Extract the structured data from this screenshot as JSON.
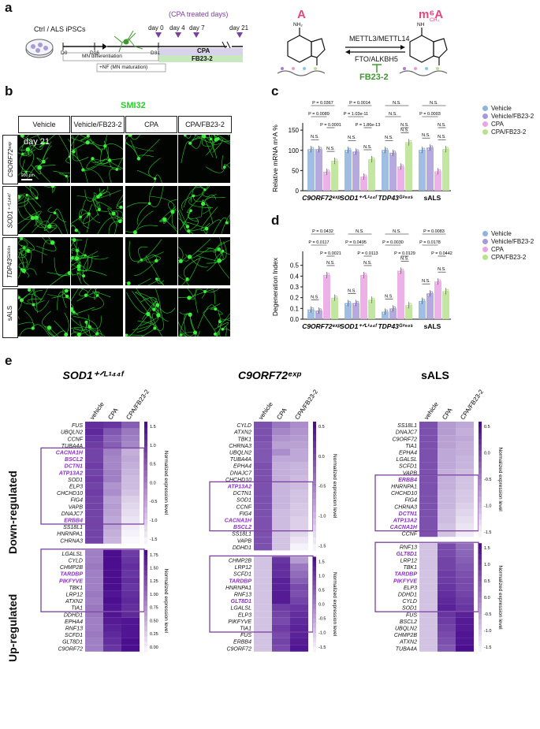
{
  "panels": [
    "a",
    "b",
    "c",
    "d",
    "e"
  ],
  "panel_a": {
    "cells_label": "Ctrl / ALS iPSCs",
    "d0": "D0",
    "d16": "D16",
    "d31": "D31",
    "mn_diff": "MN differentiation",
    "nf": "+NF (MN maturation)",
    "cpa_days": "(CPA treated days)",
    "days": [
      "day 0",
      "day 4",
      "day 7",
      "day 21"
    ],
    "cpa": "CPA",
    "fb": "FB23-2",
    "A": "A",
    "m6A": "m⁶A",
    "nh2": "NH₂",
    "nh": "NH",
    "ch3": "CH₃",
    "writer": "METTL3/METTL14",
    "eraser": "FTO/ALKBH5",
    "inhib": "FB23-2"
  },
  "panel_b": {
    "stain": "SMI32",
    "columns": [
      "Vehicle",
      "Vehicle/FB23-2",
      "CPA",
      "CPA/FB23-2"
    ],
    "rows": [
      "C9ORF72ᵉˣᵖ",
      "SOD1⁺ᐟᴸ¹⁴⁴ᶠ",
      "TDP43ᴳ²⁹⁸ˢ",
      "sALS"
    ],
    "day": "day 21",
    "scale": "200 μm"
  },
  "legend": [
    "Vehicle",
    "Vehicle/FB23-2",
    "CPA",
    "CPA/FB23-2"
  ],
  "colors": {
    "vehicle": "#8fb3df",
    "vehfb": "#a89ad8",
    "cpa": "#e9a5e3",
    "cpafb": "#b8e28f",
    "heat_dark": "#4a0e8f",
    "highlight": "#8b2fc9",
    "smi": "#23d323"
  },
  "chart_data": [
    {
      "type": "bar",
      "ylabel": "Relative mRNA m⁶A %",
      "ylim": [
        0,
        160
      ],
      "yticks": [
        "0",
        "50",
        "100",
        "150"
      ],
      "categories": [
        "C9ORF72ᵉˣᵖ",
        "SOD1⁺ᐟᴸ¹⁴⁴ᶠ",
        "TDP43ᴳ²⁹⁸ˢ",
        "sALS"
      ],
      "series": [
        {
          "name": "Vehicle",
          "values": [
            103,
            101,
            101,
            101
          ]
        },
        {
          "name": "Vehicle/FB23-2",
          "values": [
            103,
            97,
            94,
            107
          ]
        },
        {
          "name": "CPA",
          "values": [
            47,
            35,
            60,
            48
          ]
        },
        {
          "name": "CPA/FB23-2",
          "values": [
            74,
            78,
            120,
            103
          ]
        }
      ],
      "pvalues": [
        [
          "P = 0.0367",
          "P = 0.0089",
          "P = 0.0001",
          "N.S.",
          "N.S."
        ],
        [
          "P = 0.0014",
          "P = 1.03e-11",
          "P = 1.86e-13",
          "N.S.",
          "N.S."
        ],
        [
          "N.S.",
          "N.S.",
          "N.S.",
          "N.S.",
          "N.S."
        ],
        [
          "N.S.",
          "P = 0.0003",
          "N.S.",
          "N.S.",
          "N.S."
        ]
      ]
    },
    {
      "type": "bar",
      "ylabel": "Degeneration Index",
      "ylim": [
        0,
        0.6
      ],
      "yticks": [
        "0.0",
        "0.1",
        "0.2",
        "0.3",
        "0.4",
        "0.5"
      ],
      "categories": [
        "C9ORF72ᵉˣᵖ",
        "SOD1⁺ᐟᴸ¹⁴⁴ᶠ",
        "TDP43ᴳ²⁹⁸ˢ",
        "sALS"
      ],
      "series": [
        {
          "name": "Vehicle",
          "values": [
            0.09,
            0.15,
            0.07,
            0.17
          ]
        },
        {
          "name": "Vehicle/FB23-2",
          "values": [
            0.08,
            0.15,
            0.1,
            0.24
          ]
        },
        {
          "name": "CPA",
          "values": [
            0.41,
            0.41,
            0.45,
            0.35
          ]
        },
        {
          "name": "CPA/FB23-2",
          "values": [
            0.2,
            0.18,
            0.13,
            0.26
          ]
        }
      ],
      "pvalues": [
        [
          "P = 0.0432",
          "P = 0.0117",
          "P = 0.0021",
          "N.S.",
          "N.S."
        ],
        [
          "N.S.",
          "P = 0.0495",
          "P = 0.0113",
          "N.S.",
          "N.S."
        ],
        [
          "N.S.",
          "P = 0.0030",
          "P = 0.0129",
          "N.S.",
          "N.S."
        ],
        [
          "P = 0.0083",
          "P = 0.0178",
          "P = 0.0442",
          "N.S.",
          "N.S."
        ]
      ]
    },
    {
      "type": "heatmap",
      "title": "SOD1⁺ᐟᴸ¹⁴⁴ᶠ",
      "columns": [
        "vehicle",
        "CPA",
        "CPA/FB23-2"
      ],
      "colorbar_title": "Normalized expression level",
      "down_ticks": [
        "1.5",
        "1.0",
        "0.5",
        "0.0",
        "-0.5",
        "-1.0",
        "-1.5"
      ],
      "up_ticks": [
        "1.75",
        "1.50",
        "1.25",
        "1.00",
        "0.75",
        "0.50",
        "0.25",
        "0.00"
      ],
      "down_genes": [
        "FUS",
        "UBQLN2",
        "CCNF",
        "TUBA4A",
        "CACNA1H",
        "BSCL2",
        "DCTN1",
        "ATP13A2",
        "SOD1",
        "ELP3",
        "CHCHD10",
        "FIG4",
        "VAPB",
        "DNAJC7",
        "ERBB4",
        "SS18L1",
        "HNRNPA1",
        "CHRNA3"
      ],
      "down_highlight": [
        "CACNA1H",
        "BSCL2",
        "DCTN1",
        "ATP13A2",
        "ERBB4"
      ],
      "down_values": [
        [
          1.3,
          1.2,
          0.6
        ],
        [
          1.4,
          0.7,
          0.2
        ],
        [
          1.2,
          0.5,
          0.1
        ],
        [
          1.1,
          0.6,
          0.0
        ],
        [
          1.0,
          0.1,
          -0.6
        ],
        [
          1.0,
          0.0,
          -0.5
        ],
        [
          1.1,
          0.0,
          -0.6
        ],
        [
          1.0,
          0.1,
          -0.7
        ],
        [
          1.1,
          0.1,
          -0.8
        ],
        [
          1.0,
          -0.2,
          -0.8
        ],
        [
          1.1,
          -0.1,
          -0.9
        ],
        [
          1.0,
          -0.4,
          -1.1
        ],
        [
          1.0,
          -0.3,
          -1.2
        ],
        [
          1.0,
          -0.4,
          -1.3
        ],
        [
          1.0,
          -0.5,
          -1.4
        ],
        [
          1.0,
          -0.5,
          -1.5
        ],
        [
          1.0,
          -0.6,
          -1.6
        ],
        [
          1.0,
          -0.7,
          -1.7
        ]
      ],
      "up_genes": [
        "LGALSL",
        "CYLD",
        "CHMP2B",
        "TARDBP",
        "PIKFYVE",
        "TBK1",
        "LRP12",
        "ATXN2",
        "TIA1",
        "DDHD1",
        "EPHA4",
        "RNF13",
        "SCFD1",
        "GLT8D1",
        "C9ORF72"
      ],
      "up_highlight": [
        "TARDBP",
        "PIKFYVE"
      ],
      "up_values": [
        [
          0.1,
          1.8,
          1.1
        ],
        [
          0.1,
          1.8,
          1.2
        ],
        [
          0.2,
          1.8,
          1.3
        ],
        [
          0.1,
          1.8,
          1.2
        ],
        [
          0.1,
          1.8,
          1.3
        ],
        [
          0.1,
          1.8,
          1.2
        ],
        [
          0.2,
          1.7,
          1.3
        ],
        [
          0.1,
          1.8,
          1.4
        ],
        [
          0.2,
          1.7,
          1.3
        ],
        [
          0.2,
          1.7,
          1.4
        ],
        [
          0.1,
          1.6,
          1.7
        ],
        [
          0.1,
          1.5,
          1.7
        ],
        [
          0.2,
          1.4,
          1.7
        ],
        [
          0.1,
          1.3,
          1.8
        ],
        [
          0.1,
          1.2,
          1.8
        ]
      ]
    },
    {
      "type": "heatmap",
      "title": "C9ORF72ᵉˣᵖ",
      "columns": [
        "vehicle",
        "CPA",
        "CPA/FB23-2"
      ],
      "colorbar_title": "Normalized expression level",
      "down_ticks": [
        "0.5",
        "0.0",
        "-0.5",
        "-1.0",
        "-1.5"
      ],
      "up_ticks": [
        "1.5",
        "1.0",
        "0.5",
        "0.0",
        "-0.5",
        "-1.0",
        "-1.5"
      ],
      "down_genes": [
        "CYLD",
        "ATXN2",
        "TBK1",
        "CHRNA3",
        "UBQLN2",
        "TUBA4A",
        "EPHA4",
        "DNAJC7",
        "CHCHD10",
        "ATP13A2",
        "DCTN1",
        "SOD1",
        "CCNF",
        "FIG4",
        "CACNA1H",
        "BSCL2",
        "SS18L1",
        "VAPB",
        "DDHD1"
      ],
      "down_highlight": [
        "ATP13A2",
        "CACNA1H",
        "BSCL2"
      ],
      "down_values": [
        [
          0.8,
          0.2,
          -0.1
        ],
        [
          0.8,
          0.0,
          -0.2
        ],
        [
          0.8,
          -0.2,
          -0.3
        ],
        [
          0.7,
          -0.4,
          -0.4
        ],
        [
          0.7,
          -0.1,
          -0.5
        ],
        [
          0.7,
          -0.5,
          -0.5
        ],
        [
          0.8,
          -0.6,
          -0.7
        ],
        [
          0.8,
          -0.6,
          -0.7
        ],
        [
          0.8,
          -0.6,
          -0.8
        ],
        [
          0.8,
          -0.7,
          -0.8
        ],
        [
          0.8,
          -0.7,
          -0.9
        ],
        [
          0.8,
          -0.7,
          -0.9
        ],
        [
          0.8,
          -0.7,
          -1.0
        ],
        [
          0.8,
          -0.8,
          -1.0
        ],
        [
          0.8,
          -0.8,
          -1.1
        ],
        [
          0.8,
          -0.8,
          -1.1
        ],
        [
          0.8,
          -0.9,
          -1.2
        ],
        [
          0.8,
          -0.9,
          -1.4
        ],
        [
          0.8,
          -0.9,
          -1.6
        ]
      ],
      "up_genes": [
        "CHMP2B",
        "LRP12",
        "SCFD1",
        "TARDBP",
        "HNRNPA1",
        "RNF13",
        "GLT8D1",
        "LGALSL",
        "ELP3",
        "PIKFYVE",
        "TIA1",
        "FUS",
        "ERBB4",
        "C9ORF72"
      ],
      "up_highlight": [
        "TARDBP",
        "GLT8D1"
      ],
      "up_values": [
        [
          -0.9,
          1.2,
          -0.3
        ],
        [
          -0.9,
          1.3,
          0.2
        ],
        [
          -0.9,
          1.3,
          0.4
        ],
        [
          -0.9,
          1.5,
          0.6
        ],
        [
          -0.9,
          1.5,
          0.9
        ],
        [
          -0.9,
          1.6,
          0.8
        ],
        [
          -0.9,
          1.6,
          1.0
        ],
        [
          -0.9,
          1.1,
          1.2
        ],
        [
          -0.9,
          1.0,
          1.3
        ],
        [
          -0.9,
          0.9,
          1.4
        ],
        [
          -0.9,
          1.1,
          1.5
        ],
        [
          -0.9,
          0.9,
          1.5
        ],
        [
          -0.9,
          1.0,
          1.6
        ],
        [
          -0.9,
          0.9,
          1.7
        ]
      ]
    },
    {
      "type": "heatmap",
      "title": "sALS",
      "columns": [
        "vehicle",
        "CPA",
        "CPA/FB23-2"
      ],
      "colorbar_title": "Normalized expression level",
      "down_ticks": [
        "0.5",
        "0.0",
        "-0.5",
        "-1.0",
        "-1.5"
      ],
      "up_ticks": [
        "1.5",
        "1.0",
        "0.5",
        "0.0",
        "-0.5",
        "-1.0",
        "-1.5"
      ],
      "down_genes": [
        "SS18L1",
        "DNAJC7",
        "C9ORF72",
        "TIA1",
        "EPHA4",
        "LGALSL",
        "SCFD1",
        "VAPB",
        "ERBB4",
        "HNRNPA1",
        "CHCHD10",
        "FIG4",
        "CHRNA3",
        "DCTN1",
        "ATP13A2",
        "CACNA1H",
        "CCNF"
      ],
      "down_highlight": [
        "ERBB4",
        "DCTN1",
        "ATP13A2",
        "CACNA1H"
      ],
      "down_values": [
        [
          0.8,
          -0.3,
          -0.5
        ],
        [
          0.8,
          -0.3,
          -0.6
        ],
        [
          0.8,
          -0.4,
          -0.5
        ],
        [
          0.8,
          -0.4,
          -0.6
        ],
        [
          0.8,
          -0.5,
          -0.6
        ],
        [
          0.8,
          -0.5,
          -0.7
        ],
        [
          0.8,
          -0.5,
          -0.7
        ],
        [
          0.8,
          -0.6,
          -0.8
        ],
        [
          0.8,
          -0.6,
          -0.9
        ],
        [
          0.8,
          -0.6,
          -0.9
        ],
        [
          0.8,
          -0.7,
          -1.0
        ],
        [
          0.8,
          -0.7,
          -1.0
        ],
        [
          0.8,
          -0.7,
          -1.1
        ],
        [
          0.8,
          -0.8,
          -1.2
        ],
        [
          0.8,
          -0.8,
          -1.3
        ],
        [
          0.8,
          -0.9,
          -1.4
        ],
        [
          0.8,
          -0.9,
          -1.5
        ]
      ],
      "up_genes": [
        "RNF13",
        "GLT8D1",
        "LRP12",
        "TBK1",
        "TARDBP",
        "PIKFYVE",
        "ELP3",
        "DDHD1",
        "CYLD",
        "SOD1",
        "FUS",
        "BSCL2",
        "UBQLN2",
        "CHMP2B",
        "ATXN2",
        "TUBA4A"
      ],
      "up_highlight": [
        "GLT8D1",
        "TARDBP",
        "PIKFYVE"
      ],
      "up_values": [
        [
          -0.9,
          0.9,
          0.4
        ],
        [
          -0.9,
          0.9,
          0.5
        ],
        [
          -0.9,
          1.0,
          0.6
        ],
        [
          -0.9,
          1.0,
          0.7
        ],
        [
          -0.9,
          1.1,
          0.8
        ],
        [
          -0.9,
          1.1,
          0.9
        ],
        [
          -0.9,
          1.2,
          0.9
        ],
        [
          -0.9,
          1.3,
          1.0
        ],
        [
          -0.9,
          1.4,
          1.1
        ],
        [
          -0.9,
          1.5,
          1.2
        ],
        [
          -0.9,
          1.2,
          1.5
        ],
        [
          -0.9,
          1.1,
          1.6
        ],
        [
          -0.9,
          1.0,
          1.6
        ],
        [
          -0.9,
          0.9,
          1.7
        ],
        [
          -0.9,
          0.8,
          1.7
        ],
        [
          -0.9,
          0.7,
          1.8
        ]
      ]
    }
  ],
  "panel_e_side": {
    "down": "Down-regulated",
    "up": "Up-regulated"
  }
}
